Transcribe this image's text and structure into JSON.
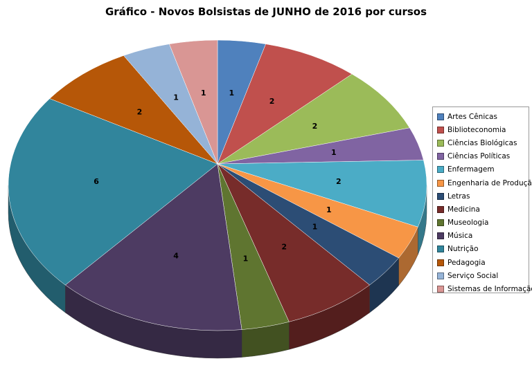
{
  "chart_data": {
    "type": "pie",
    "style": "3d",
    "title": "Gráfico - Novos Bolsistas de JUNHO de 2016 por cursos",
    "legend_position": "right",
    "categories": [
      "Artes Cênicas",
      "Biblioteconomia",
      "Ciências Biológicas",
      "Ciências Políticas",
      "Enfermagem",
      "Engenharia de Produção",
      "Letras",
      "Medicina",
      "Museologia",
      "Música",
      "Nutrição",
      "Pedagogia",
      "Serviço Social",
      "Sistemas de Informação"
    ],
    "values": [
      1,
      2,
      2,
      1,
      2,
      1,
      1,
      2,
      1,
      4,
      6,
      2,
      1,
      1
    ],
    "colors": [
      "#4F81BD",
      "#C0504D",
      "#9BBB59",
      "#8064A2",
      "#4BACC6",
      "#F79646",
      "#2C4D75",
      "#772C2A",
      "#5F7530",
      "#4D3B62",
      "#31859C",
      "#B65708",
      "#95B3D7",
      "#D99694"
    ]
  }
}
